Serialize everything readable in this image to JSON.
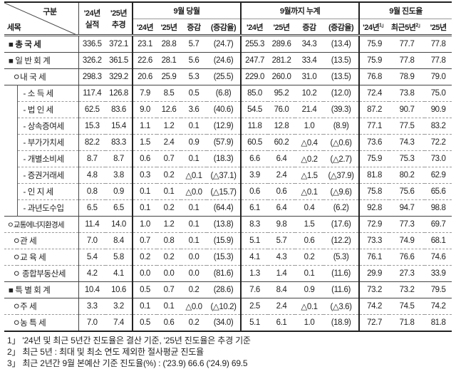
{
  "header": {
    "corner_top": "구분",
    "corner_left": "세목",
    "col_24": "'24년\n실적",
    "col_24a": "'24년",
    "col_24b": "실적",
    "col_25a": "'25년",
    "col_25b": "추경",
    "group1": "9월 당월",
    "group2": "9월까지 누계",
    "group3": "9월 진도율",
    "sub1": [
      "'24년",
      "'25년",
      "증감",
      "(증감율)"
    ],
    "sub2": [
      "'24년",
      "'25년",
      "증감",
      "(증감율)"
    ],
    "sub3": [
      "'24년",
      "최근5년",
      "'25년"
    ],
    "sub3_marks": [
      "1」",
      "2」"
    ]
  },
  "rows": [
    {
      "label": "■ 총 국 세",
      "level": 0,
      "bold": true,
      "values": [
        "336.5",
        "372.1",
        "23.1",
        "28.8",
        "5.7",
        "(24.7)",
        "255.3",
        "289.6",
        "34.3",
        "(13.4)",
        "75.9",
        "77.7",
        "77.8"
      ]
    },
    {
      "label": "■ 일 반 회 계",
      "level": 0,
      "values": [
        "326.2",
        "361.5",
        "22.6",
        "28.1",
        "5.6",
        "(24.6)",
        "247.7",
        "281.2",
        "33.4",
        "(13.5)",
        "75.9",
        "77.8",
        "77.8"
      ]
    },
    {
      "label": "ㅇ내    국    세",
      "level": 1,
      "values": [
        "298.3",
        "329.2",
        "20.6",
        "25.9",
        "5.3",
        "(25.5)",
        "229.0",
        "260.0",
        "31.0",
        "(13.5)",
        "76.8",
        "78.9",
        "79.0"
      ]
    },
    {
      "label": "- 소   득   세",
      "level": 2,
      "values": [
        "117.4",
        "126.8",
        "7.9",
        "8.5",
        "0.5",
        "(6.8)",
        "85.0",
        "95.2",
        "10.2",
        "(12.0)",
        "72.4",
        "73.8",
        "75.0"
      ]
    },
    {
      "label": "- 법   인   세",
      "level": 2,
      "values": [
        "62.5",
        "83.6",
        "9.0",
        "12.6",
        "3.6",
        "(40.6)",
        "54.5",
        "76.0",
        "21.4",
        "(39.3)",
        "87.2",
        "90.7",
        "90.9"
      ]
    },
    {
      "label": "- 상속증여세",
      "level": 2,
      "values": [
        "15.3",
        "15.4",
        "1.1",
        "1.2",
        "0.1",
        "(12.9)",
        "11.8",
        "12.8",
        "1.0",
        "(8.9)",
        "77.1",
        "77.5",
        "83.2"
      ]
    },
    {
      "label": "- 부가가치세",
      "level": 2,
      "values": [
        "82.2",
        "83.3",
        "1.5",
        "2.4",
        "0.9",
        "(57.9)",
        "60.5",
        "60.2",
        "△0.4",
        "(△0.6)",
        "73.6",
        "74.3",
        "72.2"
      ]
    },
    {
      "label": "- 개별소비세",
      "level": 2,
      "values": [
        "8.7",
        "8.7",
        "0.6",
        "0.7",
        "0.1",
        "(18.3)",
        "6.6",
        "6.4",
        "△0.2",
        "(△2.7)",
        "75.9",
        "75.3",
        "73.0"
      ]
    },
    {
      "label": "- 증권거래세",
      "level": 2,
      "values": [
        "4.8",
        "3.8",
        "0.3",
        "0.2",
        "△0.1",
        "(△37.1)",
        "3.9",
        "2.4",
        "△1.5",
        "(△37.9)",
        "81.8",
        "80.2",
        "62.9"
      ]
    },
    {
      "label": "- 인   지   세",
      "level": 2,
      "values": [
        "0.8",
        "0.9",
        "0.1",
        "0.1",
        "△0.0",
        "(△15.7)",
        "0.6",
        "0.6",
        "△0.1",
        "(△9.6)",
        "75.8",
        "75.6",
        "65.6"
      ]
    },
    {
      "label": "- 과년도수입",
      "level": 2,
      "values": [
        "6.5",
        "6.5",
        "0.1",
        "0.2",
        "0.1",
        "(64.4)",
        "6.1",
        "6.4",
        "0.4",
        "(6.2)",
        "92.8",
        "94.7",
        "98.8"
      ]
    },
    {
      "label": "ㅇ교통에너지환경세",
      "level": 1,
      "small": true,
      "values": [
        "11.4",
        "14.0",
        "1.0",
        "1.2",
        "0.1",
        "(13.8)",
        "8.3",
        "9.8",
        "1.5",
        "(17.6)",
        "72.9",
        "77.3",
        "69.7"
      ]
    },
    {
      "label": "ㅇ관              세",
      "level": 1,
      "values": [
        "7.0",
        "8.4",
        "0.7",
        "0.8",
        "0.1",
        "(15.9)",
        "5.1",
        "5.7",
        "0.6",
        "(12.2)",
        "73.3",
        "74.9",
        "68.1"
      ]
    },
    {
      "label": "ㅇ교     육     세",
      "level": 1,
      "values": [
        "5.4",
        "5.8",
        "0.2",
        "0.2",
        "0.0",
        "(15.3)",
        "4.1",
        "4.3",
        "0.2",
        "(5.3)",
        "76.1",
        "76.6",
        "74.6"
      ]
    },
    {
      "label": "ㅇ 종합부동산세",
      "level": 1,
      "values": [
        "4.2",
        "4.1",
        "0.0",
        "0.0",
        "0.0",
        "(81.6)",
        "1.3",
        "1.4",
        "0.1",
        "(11.6)",
        "29.9",
        "27.3",
        "33.9"
      ]
    },
    {
      "label": "■ 특 별 회 계",
      "level": 0,
      "values": [
        "10.4",
        "10.6",
        "0.5",
        "0.7",
        "0.2",
        "(28.6)",
        "7.6",
        "8.4",
        "0.9",
        "(11.6)",
        "73.2",
        "73.2",
        "79.5"
      ]
    },
    {
      "label": "ㅇ주              세",
      "level": 1,
      "values": [
        "3.3",
        "3.2",
        "0.1",
        "0.1",
        "△0.0",
        "(△10.2)",
        "2.5",
        "2.4",
        "△0.1",
        "(△3.6)",
        "74.2",
        "74.5",
        "74.2"
      ]
    },
    {
      "label": "ㅇ농     특     세",
      "level": 1,
      "values": [
        "7.0",
        "7.4",
        "0.5",
        "0.6",
        "0.2",
        "(34.0)",
        "5.1",
        "6.1",
        "1.0",
        "(18.9)",
        "72.7",
        "71.8",
        "81.8"
      ]
    }
  ],
  "footnotes": [
    "1」 '24년 및 최근 5년간 진도율은 결산 기준, '25년 진도율은 추경 기준",
    "2」 최근 5년 : 최대 및 최소 연도 제외한 절사평균 진도율",
    "3」 최근 2년간 9월 본예산 기준 진도율(%) : ('23.9) 66.6 ('24.9) 69.5"
  ]
}
